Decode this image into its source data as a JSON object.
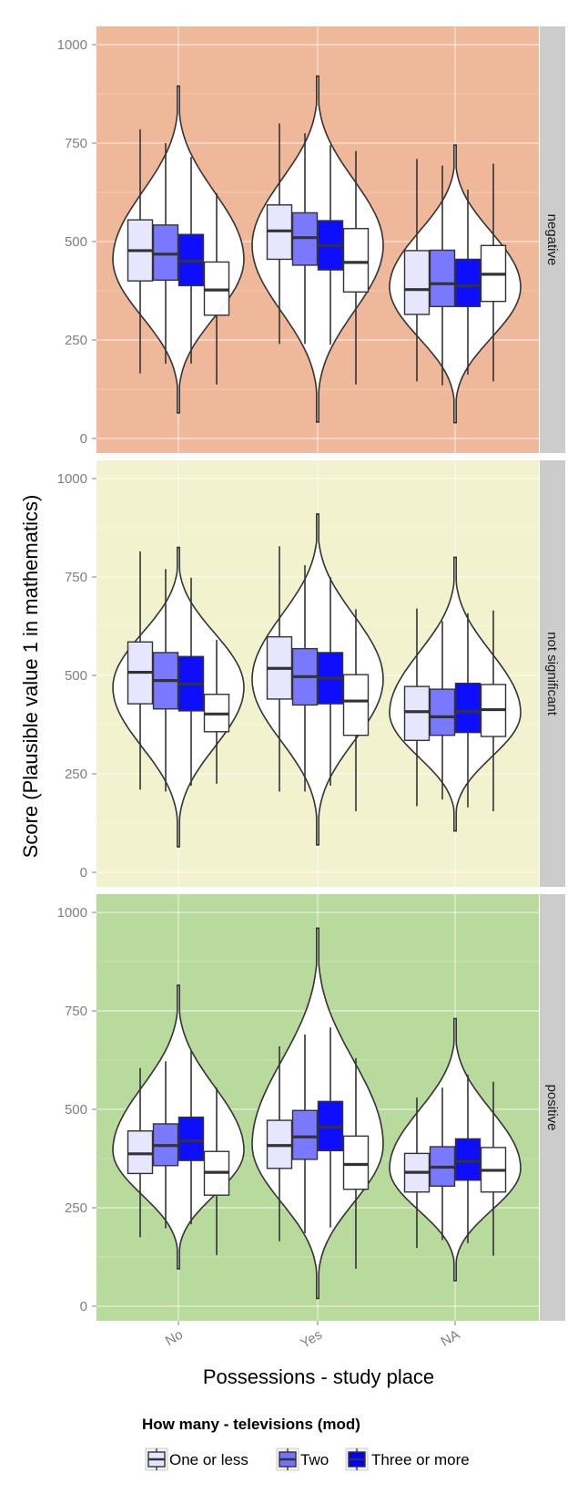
{
  "chart_data": {
    "type": "boxplot",
    "title": "",
    "xlabel": "Possessions - study place",
    "ylabel": "Score (Plausible value 1 in mathematics)",
    "categories": [
      "No",
      "Yes",
      "NA"
    ],
    "ylim": [
      0,
      1000
    ],
    "yticks": [
      0,
      250,
      500,
      750,
      1000
    ],
    "legend": {
      "title": "How many - televisions (mod)",
      "position": "bottom",
      "entries": [
        {
          "label": "One or less",
          "color": "#e5e5ff"
        },
        {
          "label": "Two",
          "color": "#7272ff"
        },
        {
          "label": "Three or more",
          "color": "#0000ff"
        },
        {
          "label": "",
          "color": "#ffffff"
        }
      ]
    },
    "panels": [
      {
        "label": "negative",
        "background": "#f0b89a",
        "groups": [
          {
            "category": "No",
            "violin": {
              "min": 65,
              "max": 895,
              "center": 470,
              "mode": 455
            },
            "boxes": [
              {
                "series": "One or less",
                "lower": 165,
                "q1": 400,
                "median": 477,
                "q3": 555,
                "upper": 785
              },
              {
                "series": "Two",
                "lower": 190,
                "q1": 402,
                "median": 468,
                "q3": 542,
                "upper": 750
              },
              {
                "series": "Three or more",
                "lower": 190,
                "q1": 388,
                "median": 450,
                "q3": 518,
                "upper": 715
              },
              {
                "series": "NA",
                "lower": 137,
                "q1": 313,
                "median": 377,
                "q3": 448,
                "upper": 623
              }
            ]
          },
          {
            "category": "Yes",
            "violin": {
              "min": 42,
              "max": 920,
              "center": 500,
              "mode": 490
            },
            "boxes": [
              {
                "series": "One or less",
                "lower": 240,
                "q1": 455,
                "median": 527,
                "q3": 593,
                "upper": 800
              },
              {
                "series": "Two",
                "lower": 240,
                "q1": 440,
                "median": 510,
                "q3": 573,
                "upper": 775
              },
              {
                "series": "Three or more",
                "lower": 238,
                "q1": 428,
                "median": 490,
                "q3": 553,
                "upper": 745
              },
              {
                "series": "NA",
                "lower": 137,
                "q1": 372,
                "median": 447,
                "q3": 533,
                "upper": 730
              }
            ]
          },
          {
            "category": "NA",
            "violin": {
              "min": 40,
              "max": 745,
              "center": 400,
              "mode": 385
            },
            "boxes": [
              {
                "series": "One or less",
                "lower": 145,
                "q1": 315,
                "median": 378,
                "q3": 477,
                "upper": 710
              },
              {
                "series": "Two",
                "lower": 135,
                "q1": 335,
                "median": 393,
                "q3": 478,
                "upper": 693
              },
              {
                "series": "Three or more",
                "lower": 162,
                "q1": 335,
                "median": 388,
                "q3": 455,
                "upper": 632
              },
              {
                "series": "NA",
                "lower": 145,
                "q1": 348,
                "median": 417,
                "q3": 490,
                "upper": 698
              }
            ]
          }
        ]
      },
      {
        "label": "not significant",
        "background": "#f2f2cf",
        "groups": [
          {
            "category": "No",
            "violin": {
              "min": 65,
              "max": 825,
              "center": 480,
              "mode": 470
            },
            "boxes": [
              {
                "series": "One or less",
                "lower": 210,
                "q1": 428,
                "median": 508,
                "q3": 585,
                "upper": 815
              },
              {
                "series": "Two",
                "lower": 205,
                "q1": 415,
                "median": 487,
                "q3": 558,
                "upper": 770
              },
              {
                "series": "Three or more",
                "lower": 220,
                "q1": 410,
                "median": 478,
                "q3": 548,
                "upper": 748
              },
              {
                "series": "NA",
                "lower": 225,
                "q1": 357,
                "median": 402,
                "q3": 452,
                "upper": 590
              }
            ]
          },
          {
            "category": "Yes",
            "violin": {
              "min": 70,
              "max": 910,
              "center": 500,
              "mode": 490
            },
            "boxes": [
              {
                "series": "One or less",
                "lower": 205,
                "q1": 440,
                "median": 518,
                "q3": 598,
                "upper": 828
              },
              {
                "series": "Two",
                "lower": 205,
                "q1": 425,
                "median": 497,
                "q3": 568,
                "upper": 780
              },
              {
                "series": "Three or more",
                "lower": 220,
                "q1": 428,
                "median": 493,
                "q3": 558,
                "upper": 750
              },
              {
                "series": "NA",
                "lower": 155,
                "q1": 348,
                "median": 435,
                "q3": 502,
                "upper": 668
              }
            ]
          },
          {
            "category": "NA",
            "violin": {
              "min": 105,
              "max": 800,
              "center": 415,
              "mode": 405
            },
            "boxes": [
              {
                "series": "One or less",
                "lower": 168,
                "q1": 335,
                "median": 408,
                "q3": 472,
                "upper": 670
              },
              {
                "series": "Two",
                "lower": 185,
                "q1": 348,
                "median": 395,
                "q3": 465,
                "upper": 638
              },
              {
                "series": "Three or more",
                "lower": 165,
                "q1": 355,
                "median": 408,
                "q3": 480,
                "upper": 658
              },
              {
                "series": "NA",
                "lower": 155,
                "q1": 345,
                "median": 413,
                "q3": 477,
                "upper": 665
              }
            ]
          }
        ]
      },
      {
        "label": "positive",
        "background": "#b8da9c",
        "groups": [
          {
            "category": "No",
            "violin": {
              "min": 95,
              "max": 815,
              "center": 395,
              "mode": 395
            },
            "boxes": [
              {
                "series": "One or less",
                "lower": 175,
                "q1": 337,
                "median": 387,
                "q3": 445,
                "upper": 605
              },
              {
                "series": "Two",
                "lower": 198,
                "q1": 357,
                "median": 408,
                "q3": 463,
                "upper": 622
              },
              {
                "series": "Three or more",
                "lower": 208,
                "q1": 370,
                "median": 420,
                "q3": 480,
                "upper": 648
              },
              {
                "series": "NA",
                "lower": 130,
                "q1": 282,
                "median": 340,
                "q3": 393,
                "upper": 555
              }
            ]
          },
          {
            "category": "Yes",
            "violin": {
              "min": 20,
              "max": 960,
              "center": 410,
              "mode": 410
            },
            "boxes": [
              {
                "series": "One or less",
                "lower": 165,
                "q1": 350,
                "median": 408,
                "q3": 472,
                "upper": 660
              },
              {
                "series": "Two",
                "lower": 185,
                "q1": 373,
                "median": 430,
                "q3": 497,
                "upper": 690
              },
              {
                "series": "Three or more",
                "lower": 200,
                "q1": 395,
                "median": 455,
                "q3": 520,
                "upper": 708
              },
              {
                "series": "NA",
                "lower": 95,
                "q1": 297,
                "median": 360,
                "q3": 432,
                "upper": 630
              }
            ]
          },
          {
            "category": "NA",
            "violin": {
              "min": 65,
              "max": 730,
              "center": 350,
              "mode": 350
            },
            "boxes": [
              {
                "series": "One or less",
                "lower": 148,
                "q1": 290,
                "median": 340,
                "q3": 388,
                "upper": 530
              },
              {
                "series": "Two",
                "lower": 168,
                "q1": 305,
                "median": 353,
                "q3": 405,
                "upper": 555
              },
              {
                "series": "Three or more",
                "lower": 160,
                "q1": 320,
                "median": 368,
                "q3": 425,
                "upper": 588
              },
              {
                "series": "NA",
                "lower": 128,
                "q1": 290,
                "median": 345,
                "q3": 403,
                "upper": 570
              }
            ]
          }
        ]
      }
    ]
  }
}
